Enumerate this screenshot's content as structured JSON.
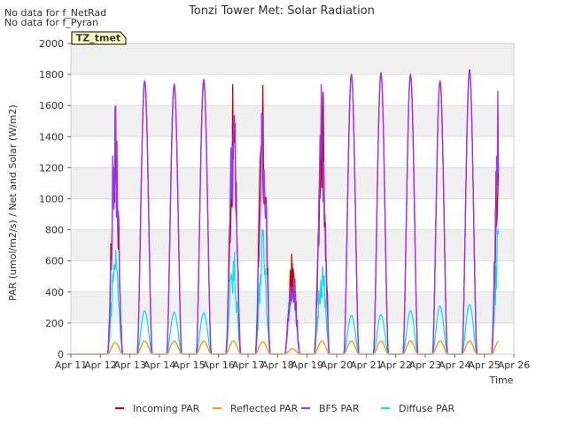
{
  "notes": [
    "No data for f_NetRad",
    "No data for f_Pyran"
  ],
  "badge": "TZ_tmet",
  "chart_data": {
    "type": "line",
    "title": "Tonzi Tower Met: Solar Radiation",
    "xlabel": "Time",
    "ylabel": "PAR (umol/m2/s) / Net and Solar (W/m2)",
    "xlim": [
      "Apr 11",
      "Apr 26"
    ],
    "ylim": [
      0,
      2000
    ],
    "x_ticks": [
      "Apr 11",
      "Apr 12",
      "Apr 13",
      "Apr 14",
      "Apr 15",
      "Apr 16",
      "Apr 17",
      "Apr 18",
      "Apr 19",
      "Apr 20",
      "Apr 21",
      "Apr 22",
      "Apr 23",
      "Apr 24",
      "Apr 25",
      "Apr 26"
    ],
    "y_ticks": [
      0,
      200,
      400,
      600,
      800,
      1000,
      1200,
      1400,
      1600,
      1800,
      2000
    ],
    "grid": true,
    "legend_position": "bottom",
    "days": [
      "Apr 11",
      "Apr 12",
      "Apr 13",
      "Apr 14",
      "Apr 15",
      "Apr 16",
      "Apr 17",
      "Apr 18",
      "Apr 19",
      "Apr 20",
      "Apr 21",
      "Apr 22",
      "Apr 23",
      "Apr 24",
      "Apr 25"
    ],
    "series": [
      {
        "name": "Incoming PAR",
        "color": "#cc0000",
        "daily_peak": [
          0,
          1640,
          1760,
          1730,
          1760,
          1760,
          1750,
          660,
          1820,
          1800,
          1810,
          1800,
          1760,
          1830,
          1840
        ]
      },
      {
        "name": "Reflected PAR",
        "color": "#ff9900",
        "daily_peak": [
          0,
          75,
          85,
          85,
          85,
          85,
          80,
          35,
          85,
          85,
          85,
          85,
          85,
          85,
          85
        ]
      },
      {
        "name": "BF5 PAR",
        "color": "#9933ff",
        "daily_peak": [
          0,
          1640,
          1760,
          1740,
          1770,
          1740,
          1720,
          630,
          1800,
          1800,
          1810,
          1800,
          1760,
          1820,
          1820
        ]
      },
      {
        "name": "Diffuse PAR",
        "color": "#00e5ee",
        "daily_peak": [
          0,
          760,
          280,
          270,
          265,
          700,
          830,
          600,
          650,
          250,
          255,
          280,
          310,
          320,
          900
        ]
      }
    ]
  }
}
